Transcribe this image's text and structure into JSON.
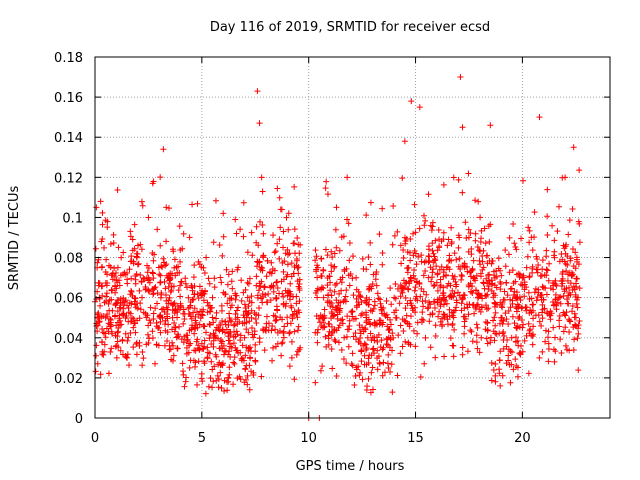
{
  "chart_data": {
    "type": "scatter",
    "title": "Day 116 of 2019, SRMTID for receiver ecsd",
    "xlabel": "GPS time / hours",
    "ylabel": "SRMTID / TECUs",
    "xlim": [
      0,
      24.1
    ],
    "ylim": [
      0,
      0.18
    ],
    "xticks": [
      0,
      5,
      10,
      15,
      20
    ],
    "yticks": [
      0,
      0.02,
      0.04,
      0.06,
      0.08,
      0.1,
      0.12,
      0.14,
      0.16,
      0.18
    ],
    "xtick_labels": [
      "0",
      "5",
      "10",
      "15",
      "20"
    ],
    "ytick_labels": [
      "0",
      "0.02",
      "0.04",
      "0.06",
      "0.08",
      "0.1",
      "0.12",
      "0.14",
      "0.16",
      "0.18"
    ],
    "grid": true,
    "marker": "+",
    "color": "#ff0000",
    "series": [
      {
        "name": "SRMTID",
        "x_range": [
          0,
          22.7
        ],
        "samples": [
          {
            "x": 0.1,
            "y": 0.063
          },
          {
            "x": 0.3,
            "y": 0.088
          },
          {
            "x": 0.5,
            "y": 0.05
          },
          {
            "x": 0.8,
            "y": 0.042
          },
          {
            "x": 1.2,
            "y": 0.055
          },
          {
            "x": 1.5,
            "y": 0.03
          },
          {
            "x": 1.8,
            "y": 0.078
          },
          {
            "x": 2.2,
            "y": 0.06
          },
          {
            "x": 2.5,
            "y": 0.1
          },
          {
            "x": 2.7,
            "y": 0.117
          },
          {
            "x": 3.0,
            "y": 0.045
          },
          {
            "x": 3.2,
            "y": 0.134
          },
          {
            "x": 3.5,
            "y": 0.07
          },
          {
            "x": 4.0,
            "y": 0.055
          },
          {
            "x": 4.3,
            "y": 0.032
          },
          {
            "x": 4.8,
            "y": 0.045
          },
          {
            "x": 5.2,
            "y": 0.08
          },
          {
            "x": 5.5,
            "y": 0.06
          },
          {
            "x": 6.0,
            "y": 0.102
          },
          {
            "x": 6.4,
            "y": 0.035
          },
          {
            "x": 7.0,
            "y": 0.04
          },
          {
            "x": 7.6,
            "y": 0.163
          },
          {
            "x": 7.7,
            "y": 0.147
          },
          {
            "x": 7.8,
            "y": 0.12
          },
          {
            "x": 8.2,
            "y": 0.065
          },
          {
            "x": 8.8,
            "y": 0.085
          },
          {
            "x": 9.2,
            "y": 0.055
          },
          {
            "x": 9.6,
            "y": 0.035
          },
          {
            "x": 10.0,
            "y": 0.0
          },
          {
            "x": 10.5,
            "y": 0.0
          },
          {
            "x": 10.7,
            "y": 0.06
          },
          {
            "x": 11.3,
            "y": 0.105
          },
          {
            "x": 11.8,
            "y": 0.12
          },
          {
            "x": 12.5,
            "y": 0.052
          },
          {
            "x": 13.0,
            "y": 0.04
          },
          {
            "x": 13.5,
            "y": 0.035
          },
          {
            "x": 14.0,
            "y": 0.06
          },
          {
            "x": 14.5,
            "y": 0.138
          },
          {
            "x": 14.8,
            "y": 0.158
          },
          {
            "x": 15.2,
            "y": 0.155
          },
          {
            "x": 15.6,
            "y": 0.07
          },
          {
            "x": 16.3,
            "y": 0.065
          },
          {
            "x": 17.1,
            "y": 0.17
          },
          {
            "x": 17.2,
            "y": 0.145
          },
          {
            "x": 17.5,
            "y": 0.09
          },
          {
            "x": 18.5,
            "y": 0.146
          },
          {
            "x": 19.0,
            "y": 0.05
          },
          {
            "x": 19.5,
            "y": 0.04
          },
          {
            "x": 20.2,
            "y": 0.075
          },
          {
            "x": 20.8,
            "y": 0.15
          },
          {
            "x": 21.0,
            "y": 0.065
          },
          {
            "x": 21.5,
            "y": 0.028
          },
          {
            "x": 22.0,
            "y": 0.12
          },
          {
            "x": 22.4,
            "y": 0.135
          },
          {
            "x": 22.6,
            "y": 0.06
          }
        ]
      }
    ]
  }
}
